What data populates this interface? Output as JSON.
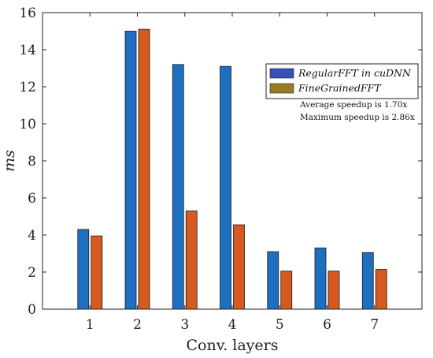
{
  "chart_data": {
    "type": "bar",
    "categories": [
      "1",
      "2",
      "3",
      "4",
      "5",
      "6",
      "7"
    ],
    "series": [
      {
        "name": "RegularFFT in cuDNN",
        "values": [
          4.3,
          15.0,
          13.2,
          13.1,
          3.1,
          3.3,
          3.05
        ],
        "color": "#1f6fc1",
        "legend_color": "#3a4fb5"
      },
      {
        "name": "FineGrainedFFT",
        "values": [
          3.95,
          15.1,
          5.3,
          4.55,
          2.05,
          2.05,
          2.15
        ],
        "color": "#d65a1f",
        "legend_color": "#9a7a24"
      }
    ],
    "xlabel": "Conv. layers",
    "ylabel": "ms",
    "ylim": [
      0,
      16
    ],
    "xlim": [
      0,
      8
    ],
    "yticks": [
      "0",
      "2",
      "4",
      "6",
      "8",
      "10",
      "12",
      "14",
      "16"
    ],
    "grid": false,
    "legend_position": "right",
    "annotations": [
      "Average speedup is 1.70x",
      "Maximum speedup is 2.86x"
    ]
  }
}
